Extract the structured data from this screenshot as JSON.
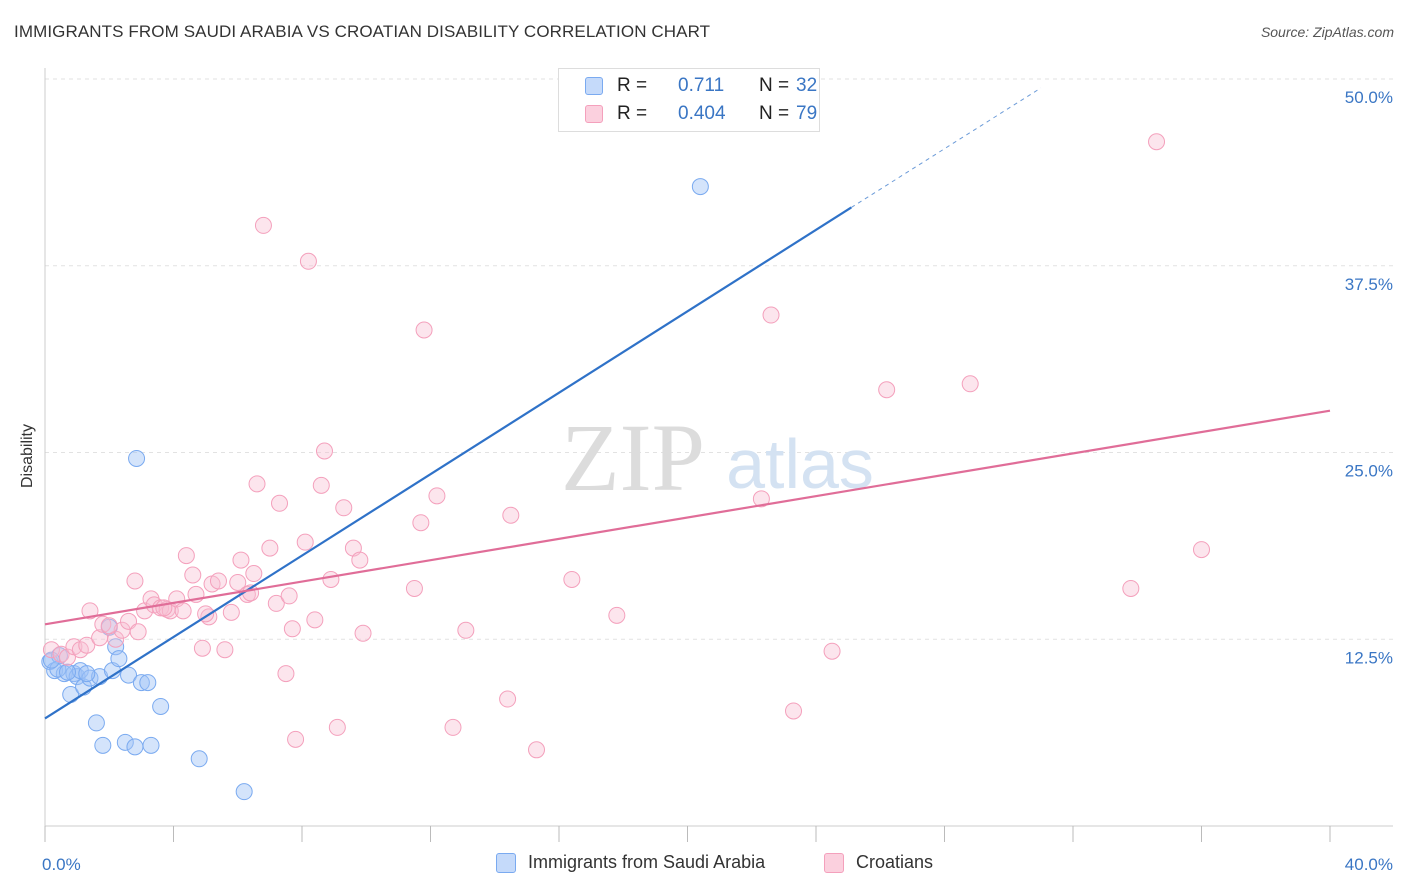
{
  "header": {
    "title": "IMMIGRANTS FROM SAUDI ARABIA VS CROATIAN DISABILITY CORRELATION CHART",
    "source": "Source: ZipAtlas.com"
  },
  "watermark": {
    "zip": "ZIP",
    "atlas": "atlas"
  },
  "legend": {
    "rows": [
      {
        "r_label": "R =",
        "r_value": "0.711",
        "n_label": "N =",
        "n_value": "32"
      },
      {
        "r_label": "R =",
        "r_value": "0.404",
        "n_label": "N =",
        "n_value": "79"
      }
    ]
  },
  "chart_data": {
    "type": "scatter",
    "title": "IMMIGRANTS FROM SAUDI ARABIA VS CROATIAN DISABILITY CORRELATION CHART",
    "xlabel": "",
    "ylabel": "Disability",
    "xlim": [
      0,
      40
    ],
    "ylim": [
      0,
      50
    ],
    "x_tick_labels": [
      "0.0%",
      "40.0%"
    ],
    "y_ticks": [
      12.5,
      25,
      37.5,
      50
    ],
    "y_tick_labels": [
      "12.5%",
      "25.0%",
      "37.5%",
      "50.0%"
    ],
    "grid": "horizontal-dashed",
    "legend_position": "top-center",
    "series": [
      {
        "name": "Immigrants from Saudi Arabia",
        "color": "#7aaaf0",
        "line_color": "#2f72c8",
        "trendline": {
          "x": [
            0,
            25.1
          ],
          "y": [
            7.2,
            41.4
          ],
          "dashed_to": [
            31,
            49.4
          ]
        },
        "points": [
          [
            0.15,
            11.0
          ],
          [
            0.3,
            10.4
          ],
          [
            0.45,
            11.4
          ],
          [
            0.6,
            10.2
          ],
          [
            0.8,
            8.8
          ],
          [
            0.9,
            10.2
          ],
          [
            1.0,
            10.0
          ],
          [
            1.1,
            10.4
          ],
          [
            1.2,
            9.3
          ],
          [
            1.4,
            9.9
          ],
          [
            1.6,
            6.9
          ],
          [
            1.7,
            10.0
          ],
          [
            1.8,
            5.4
          ],
          [
            2.0,
            13.3
          ],
          [
            2.1,
            10.4
          ],
          [
            2.2,
            12.0
          ],
          [
            2.3,
            11.2
          ],
          [
            2.5,
            5.6
          ],
          [
            2.6,
            10.1
          ],
          [
            2.8,
            5.3
          ],
          [
            2.85,
            24.6
          ],
          [
            3.0,
            9.6
          ],
          [
            3.2,
            9.6
          ],
          [
            3.3,
            5.4
          ],
          [
            3.6,
            8.0
          ],
          [
            4.8,
            4.5
          ],
          [
            6.2,
            2.3
          ],
          [
            20.4,
            42.8
          ],
          [
            0.4,
            10.5
          ],
          [
            0.7,
            10.3
          ],
          [
            1.3,
            10.2
          ],
          [
            0.2,
            11.1
          ]
        ]
      },
      {
        "name": "Croatians",
        "color": "#f4a0bc",
        "line_color": "#e06d98",
        "trendline": {
          "x": [
            0,
            40
          ],
          "y": [
            13.5,
            27.8
          ]
        },
        "points": [
          [
            0.2,
            11.8
          ],
          [
            0.5,
            11.5
          ],
          [
            0.7,
            11.3
          ],
          [
            0.9,
            12.0
          ],
          [
            1.1,
            11.8
          ],
          [
            1.3,
            12.1
          ],
          [
            1.4,
            14.4
          ],
          [
            1.7,
            12.6
          ],
          [
            1.8,
            13.5
          ],
          [
            2.2,
            12.5
          ],
          [
            2.4,
            13.1
          ],
          [
            2.6,
            13.7
          ],
          [
            2.8,
            16.4
          ],
          [
            2.9,
            13.0
          ],
          [
            3.1,
            14.4
          ],
          [
            3.3,
            15.2
          ],
          [
            3.4,
            14.8
          ],
          [
            3.6,
            14.6
          ],
          [
            3.8,
            14.5
          ],
          [
            3.9,
            14.4
          ],
          [
            4.1,
            15.2
          ],
          [
            4.3,
            14.4
          ],
          [
            4.4,
            18.1
          ],
          [
            4.6,
            16.8
          ],
          [
            4.7,
            15.5
          ],
          [
            4.9,
            11.9
          ],
          [
            5.1,
            14.0
          ],
          [
            5.2,
            16.2
          ],
          [
            5.4,
            16.4
          ],
          [
            5.6,
            11.8
          ],
          [
            5.8,
            14.3
          ],
          [
            6.0,
            16.3
          ],
          [
            6.1,
            17.8
          ],
          [
            6.3,
            15.5
          ],
          [
            6.5,
            16.9
          ],
          [
            6.6,
            22.9
          ],
          [
            6.8,
            40.2
          ],
          [
            7.0,
            18.6
          ],
          [
            7.2,
            14.9
          ],
          [
            7.3,
            21.6
          ],
          [
            7.5,
            10.2
          ],
          [
            7.6,
            15.4
          ],
          [
            7.7,
            13.2
          ],
          [
            7.8,
            5.8
          ],
          [
            8.1,
            19.0
          ],
          [
            8.2,
            37.8
          ],
          [
            8.4,
            13.8
          ],
          [
            8.6,
            22.8
          ],
          [
            8.7,
            25.1
          ],
          [
            8.9,
            16.5
          ],
          [
            9.1,
            6.6
          ],
          [
            9.3,
            21.3
          ],
          [
            9.6,
            18.6
          ],
          [
            9.8,
            17.8
          ],
          [
            9.9,
            12.9
          ],
          [
            11.5,
            15.9
          ],
          [
            11.7,
            20.3
          ],
          [
            11.8,
            33.2
          ],
          [
            12.2,
            22.1
          ],
          [
            12.7,
            6.6
          ],
          [
            13.1,
            13.1
          ],
          [
            14.4,
            8.5
          ],
          [
            14.5,
            20.8
          ],
          [
            15.3,
            5.1
          ],
          [
            16.4,
            16.5
          ],
          [
            17.8,
            14.1
          ],
          [
            22.3,
            21.9
          ],
          [
            22.6,
            34.2
          ],
          [
            23.3,
            7.7
          ],
          [
            24.5,
            11.7
          ],
          [
            26.2,
            29.2
          ],
          [
            28.8,
            29.6
          ],
          [
            33.8,
            15.9
          ],
          [
            34.6,
            45.8
          ],
          [
            36.0,
            18.5
          ],
          [
            2.0,
            13.4
          ],
          [
            3.7,
            14.6
          ],
          [
            5.0,
            14.2
          ],
          [
            6.4,
            15.6
          ]
        ]
      }
    ]
  },
  "legend_bottom": [
    {
      "label": "Immigrants from Saudi Arabia"
    },
    {
      "label": "Croatians"
    }
  ]
}
